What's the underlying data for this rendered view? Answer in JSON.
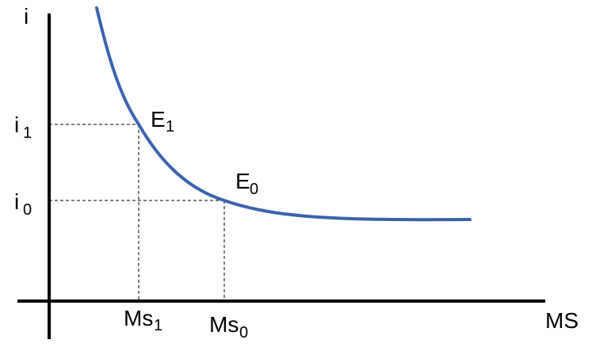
{
  "colors": {
    "curve": "#3a63ad",
    "axis": "#000000",
    "guide": "#000000",
    "background": "#ffffff"
  },
  "axes": {
    "y_label": "i",
    "x_label": "MS"
  },
  "points": {
    "e1": {
      "label_main": "E",
      "label_sub": "1"
    },
    "e0": {
      "label_main": "E",
      "label_sub": "0"
    }
  },
  "y_ticks": {
    "i1": {
      "main": "i",
      "sub": "1"
    },
    "i0": {
      "main": "i",
      "sub": "0"
    }
  },
  "x_ticks": {
    "ms1": {
      "main": "Ms",
      "sub": "1"
    },
    "ms0": {
      "main": "Ms",
      "sub": "0"
    }
  }
}
